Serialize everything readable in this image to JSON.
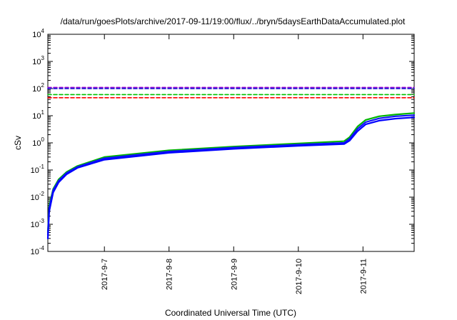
{
  "chart_data": {
    "type": "line",
    "title": "/data/run/goesPlots/archive/2017-09-11/19:00/flux/../bryn/5daysEarthDataAccumulated.plot",
    "xlabel": "Coordinated Universal Time (UTC)",
    "ylabel": "cSv",
    "yscale": "log",
    "ylim": [
      0.0001,
      10000
    ],
    "y_tick_labels": [
      {
        "base": "10",
        "exp": "-4",
        "value": 0.0001
      },
      {
        "base": "10",
        "exp": "-3",
        "value": 0.001
      },
      {
        "base": "10",
        "exp": "-2",
        "value": 0.01
      },
      {
        "base": "10",
        "exp": "-1",
        "value": 0.1
      },
      {
        "base": "10",
        "exp": "0",
        "value": 1
      },
      {
        "base": "10",
        "exp": "1",
        "value": 10
      },
      {
        "base": "10",
        "exp": "2",
        "value": 100
      },
      {
        "base": "10",
        "exp": "3",
        "value": 1000
      },
      {
        "base": "10",
        "exp": "4",
        "value": 10000
      }
    ],
    "xlim": [
      "2017-09-06 03:00",
      "2017-09-11 19:00"
    ],
    "x_ticks": [
      "2017-9-7",
      "2017-9-8",
      "2017-9-9",
      "2017-9-10",
      "2017-9-11"
    ],
    "grid": false,
    "legend": "none",
    "series": [
      {
        "style": "solid",
        "color": "#00b400",
        "x": [
          "2017-09-06 03:00",
          "2017-09-06 03:30",
          "2017-09-06 05:00",
          "2017-09-06 07:00",
          "2017-09-06 10:00",
          "2017-09-06 14:00",
          "2017-09-07 00:00",
          "2017-09-08 00:00",
          "2017-09-09 00:00",
          "2017-09-10 00:00",
          "2017-09-10 17:00",
          "2017-09-10 19:00",
          "2017-09-10 22:00",
          "2017-09-11 01:00",
          "2017-09-11 06:00",
          "2017-09-11 12:00",
          "2017-09-11 19:00"
        ],
        "values": [
          0.0005,
          0.005,
          0.02,
          0.045,
          0.085,
          0.14,
          0.3,
          0.53,
          0.73,
          0.95,
          1.15,
          1.6,
          4.0,
          7.0,
          9.5,
          11.0,
          12.5
        ]
      },
      {
        "style": "solid",
        "color": "#1010ff",
        "x": [
          "2017-09-06 03:00",
          "2017-09-06 03:30",
          "2017-09-06 05:00",
          "2017-09-06 07:00",
          "2017-09-06 10:00",
          "2017-09-06 14:00",
          "2017-09-07 00:00",
          "2017-09-08 00:00",
          "2017-09-09 00:00",
          "2017-09-10 00:00",
          "2017-09-10 17:00",
          "2017-09-10 19:00",
          "2017-09-10 22:00",
          "2017-09-11 01:00",
          "2017-09-11 06:00",
          "2017-09-11 12:00",
          "2017-09-11 19:00"
        ],
        "values": [
          0.0004,
          0.004,
          0.018,
          0.04,
          0.078,
          0.13,
          0.27,
          0.48,
          0.67,
          0.86,
          1.0,
          1.4,
          3.3,
          5.8,
          8.0,
          9.5,
          10.5
        ]
      },
      {
        "style": "solid",
        "color": "#0000ff",
        "x": [
          "2017-09-06 03:00",
          "2017-09-06 03:30",
          "2017-09-06 05:00",
          "2017-09-06 07:00",
          "2017-09-06 10:00",
          "2017-09-06 14:00",
          "2017-09-07 00:00",
          "2017-09-08 00:00",
          "2017-09-09 00:00",
          "2017-09-10 00:00",
          "2017-09-10 17:00",
          "2017-09-10 19:00",
          "2017-09-10 22:00",
          "2017-09-11 01:00",
          "2017-09-11 06:00",
          "2017-09-11 12:00",
          "2017-09-11 19:00"
        ],
        "values": [
          0.0003,
          0.003,
          0.015,
          0.035,
          0.07,
          0.12,
          0.24,
          0.43,
          0.6,
          0.78,
          0.9,
          1.2,
          2.7,
          4.8,
          6.6,
          7.8,
          8.7
        ]
      },
      {
        "style": "dashed",
        "color": "#9400d3",
        "x": [
          "2017-09-06 03:00",
          "2017-09-11 19:00"
        ],
        "values": [
          110,
          110
        ]
      },
      {
        "style": "dashed",
        "color": "#0000cc",
        "x": [
          "2017-09-06 03:00",
          "2017-09-11 19:00"
        ],
        "values": [
          100,
          100
        ]
      },
      {
        "style": "dashed",
        "color": "#00c000",
        "x": [
          "2017-09-06 03:00",
          "2017-09-11 19:00"
        ],
        "values": [
          60,
          60
        ]
      },
      {
        "style": "dashed",
        "color": "#ff0000",
        "x": [
          "2017-09-06 03:00",
          "2017-09-11 19:00"
        ],
        "values": [
          46,
          46
        ]
      }
    ]
  }
}
